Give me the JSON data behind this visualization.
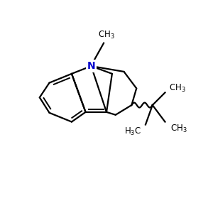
{
  "bg_color": "#ffffff",
  "bond_color": "#000000",
  "N_color": "#0000cd",
  "lw": 1.6
}
